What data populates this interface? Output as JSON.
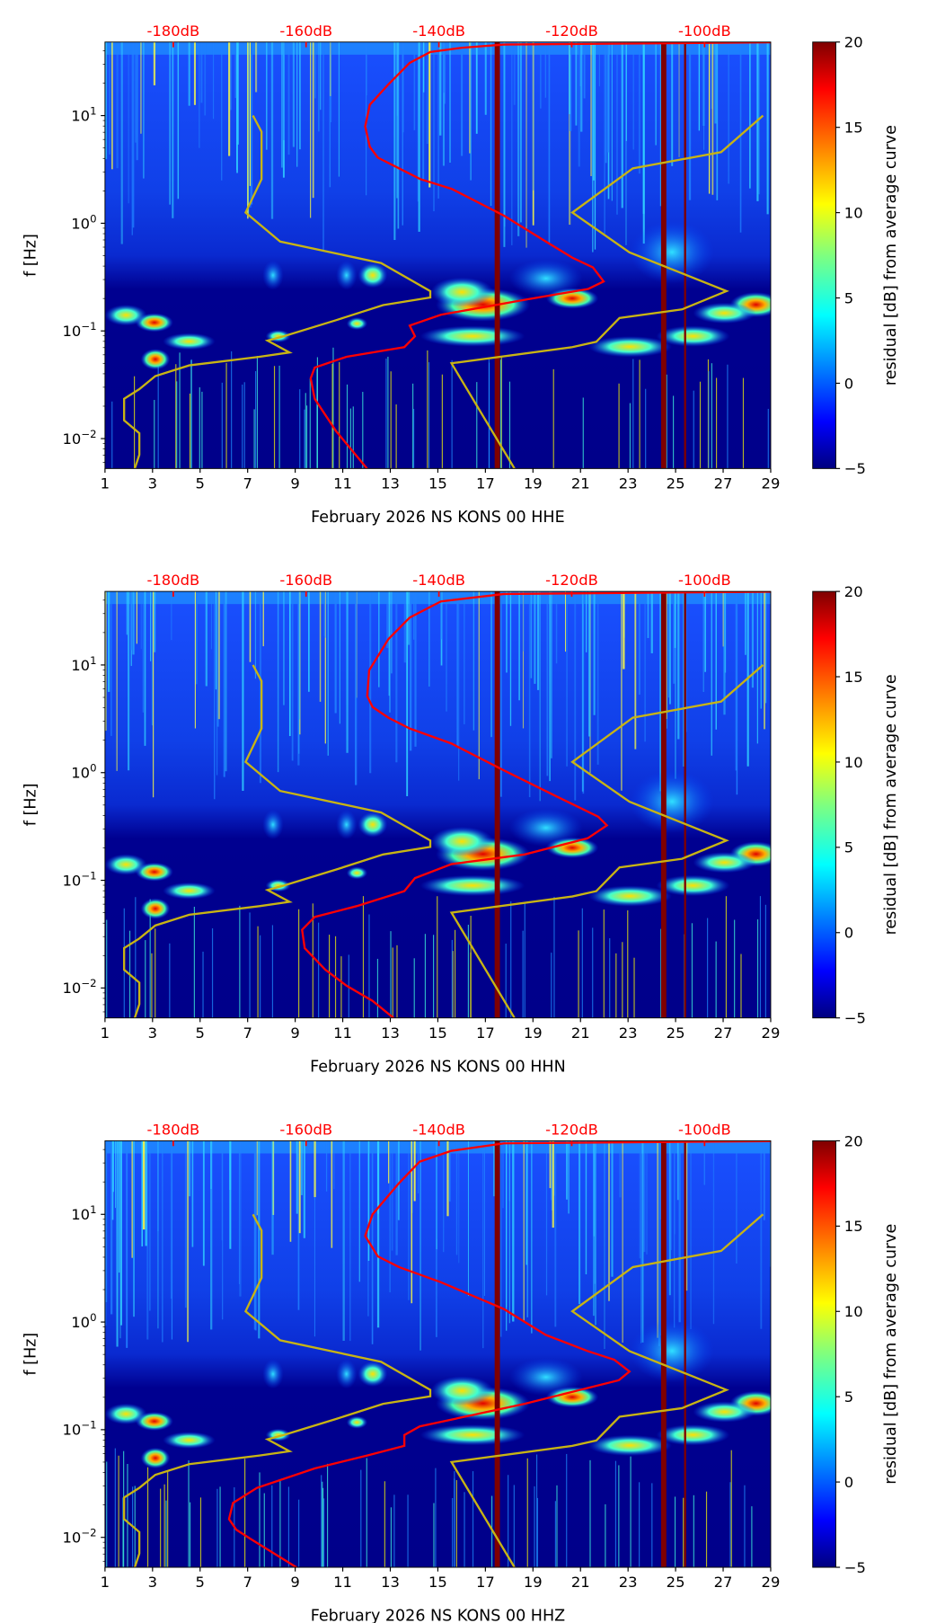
{
  "chart_data": {
    "type": "heatmap",
    "shared": {
      "x_ticks": [
        "1",
        "3",
        "5",
        "7",
        "9",
        "11",
        "13",
        "15",
        "17",
        "19",
        "21",
        "23",
        "25",
        "27",
        "29"
      ],
      "x_range_days": [
        1,
        29
      ],
      "ylabel": "f [Hz]",
      "y_range_hz": [
        0.005,
        48
      ],
      "y_ticks": [
        {
          "exp": "1",
          "value": 10
        },
        {
          "exp": "0",
          "value": 1
        },
        {
          "exp": "−1",
          "value": 0.1
        },
        {
          "exp": "−2",
          "value": 0.01
        }
      ],
      "top_axis_labels": [
        "-180dB",
        "-160dB",
        "-140dB",
        "-120dB",
        "-100dB"
      ],
      "top_axis_db": [
        -180,
        -160,
        -140,
        -120,
        -100
      ],
      "top_axis_db_range": [
        -200.5,
        -88.4
      ],
      "colorbar": {
        "label": "residual [dB] from average curve",
        "range": [
          -5,
          20
        ],
        "ticks": [
          "20",
          "15",
          "10",
          "5",
          "0",
          "−5"
        ],
        "colormap": "jet"
      },
      "nlnm_curve_db_log10hz": [
        [
          -168.0,
          1.0
        ],
        [
          -166.7,
          0.85
        ],
        [
          -166.7,
          0.41
        ],
        [
          -169.1,
          0.1
        ],
        [
          -163.9,
          -0.17
        ],
        [
          -148.7,
          -0.37
        ],
        [
          -141.3,
          -0.63
        ],
        [
          -141.3,
          -0.69
        ],
        [
          -148.4,
          -0.76
        ],
        [
          -155.5,
          -0.9
        ],
        [
          -163.4,
          -1.05
        ],
        [
          -165.8,
          -1.09
        ],
        [
          -162.5,
          -1.2
        ],
        [
          -167.0,
          -1.24
        ],
        [
          -177.6,
          -1.32
        ],
        [
          -182.7,
          -1.42
        ],
        [
          -185.1,
          -1.54
        ],
        [
          -187.4,
          -1.63
        ],
        [
          -187.4,
          -1.83
        ],
        [
          -185.1,
          -1.95
        ],
        [
          -185.1,
          -2.15
        ],
        [
          -185.8,
          -2.28
        ]
      ],
      "nhnm_curve_db_log10hz": [
        [
          -91.2,
          1.0
        ],
        [
          -97.5,
          0.66
        ],
        [
          -110.8,
          0.51
        ],
        [
          -119.9,
          0.1
        ],
        [
          -111.3,
          -0.27
        ],
        [
          -96.7,
          -0.63
        ],
        [
          -103.4,
          -0.8
        ],
        [
          -112.8,
          -0.88
        ],
        [
          -116.3,
          -1.1
        ],
        [
          -119.9,
          -1.15
        ],
        [
          -138.1,
          -1.3
        ],
        [
          -128.6,
          -2.28
        ]
      ],
      "curve_colors": {
        "psd": "#ff0000",
        "noise_models": "#c8b414",
        "top_labels": "#ff0000"
      },
      "gap_days": [
        17.5,
        24.5,
        25.4
      ]
    },
    "panels": [
      {
        "xlabel": "February 2026 NS KONS 00 HHE",
        "psd_curve_db_log10hz": [
          [
            -150.8,
            -2.28
          ],
          [
            -155.5,
            -1.93
          ],
          [
            -158.7,
            -1.63
          ],
          [
            -159.3,
            -1.44
          ],
          [
            -158.7,
            -1.34
          ],
          [
            -153.9,
            -1.24
          ],
          [
            -145.2,
            -1.15
          ],
          [
            -143.6,
            -1.05
          ],
          [
            -144.4,
            -0.95
          ],
          [
            -139.7,
            -0.85
          ],
          [
            -127.0,
            -0.71
          ],
          [
            -117.5,
            -0.61
          ],
          [
            -115.2,
            -0.54
          ],
          [
            -116.8,
            -0.41
          ],
          [
            -119.9,
            -0.32
          ],
          [
            -123.9,
            -0.17
          ],
          [
            -130.2,
            0.07
          ],
          [
            -138.1,
            0.32
          ],
          [
            -142.8,
            0.41
          ],
          [
            -146.0,
            0.51
          ],
          [
            -149.2,
            0.61
          ],
          [
            -150.4,
            0.71
          ],
          [
            -151.1,
            0.9
          ],
          [
            -150.4,
            1.1
          ],
          [
            -147.6,
            1.29
          ],
          [
            -144.4,
            1.49
          ],
          [
            -141.3,
            1.59
          ],
          [
            -136.5,
            1.63
          ],
          [
            -130.2,
            1.66
          ],
          [
            -90.0,
            1.68
          ]
        ]
      },
      {
        "xlabel": "February 2026 NS KONS 00 HHN",
        "psd_curve_db_log10hz": [
          [
            -146.8,
            -2.28
          ],
          [
            -150.0,
            -2.12
          ],
          [
            -153.9,
            -1.98
          ],
          [
            -157.1,
            -1.83
          ],
          [
            -160.2,
            -1.63
          ],
          [
            -160.6,
            -1.46
          ],
          [
            -158.7,
            -1.34
          ],
          [
            -152.4,
            -1.24
          ],
          [
            -145.2,
            -1.1
          ],
          [
            -143.6,
            -0.98
          ],
          [
            -138.1,
            -0.85
          ],
          [
            -127.1,
            -0.76
          ],
          [
            -117.6,
            -0.61
          ],
          [
            -114.7,
            -0.49
          ],
          [
            -116.0,
            -0.41
          ],
          [
            -122.3,
            -0.22
          ],
          [
            -130.2,
            0.02
          ],
          [
            -138.1,
            0.27
          ],
          [
            -144.4,
            0.41
          ],
          [
            -147.6,
            0.51
          ],
          [
            -150.0,
            0.61
          ],
          [
            -150.8,
            0.71
          ],
          [
            -150.5,
            0.95
          ],
          [
            -147.6,
            1.24
          ],
          [
            -144.4,
            1.44
          ],
          [
            -139.7,
            1.59
          ],
          [
            -130.2,
            1.66
          ],
          [
            -90.1,
            1.68
          ]
        ]
      },
      {
        "xlabel": "February 2026 NS KONS 00 HHZ",
        "psd_curve_db_log10hz": [
          [
            -161.4,
            -2.28
          ],
          [
            -168.2,
            -2.02
          ],
          [
            -170.5,
            -1.93
          ],
          [
            -171.6,
            -1.83
          ],
          [
            -171.0,
            -1.68
          ],
          [
            -167.4,
            -1.54
          ],
          [
            -158.7,
            -1.36
          ],
          [
            -150.8,
            -1.24
          ],
          [
            -145.2,
            -1.15
          ],
          [
            -145.2,
            -1.05
          ],
          [
            -142.9,
            -0.97
          ],
          [
            -127.1,
            -0.76
          ],
          [
            -112.9,
            -0.54
          ],
          [
            -111.3,
            -0.46
          ],
          [
            -113.6,
            -0.35
          ],
          [
            -117.6,
            -0.27
          ],
          [
            -123.9,
            -0.12
          ],
          [
            -130.2,
            0.12
          ],
          [
            -139.7,
            0.37
          ],
          [
            -146.0,
            0.51
          ],
          [
            -149.2,
            0.61
          ],
          [
            -151.1,
            0.8
          ],
          [
            -150.0,
            1.0
          ],
          [
            -146.0,
            1.29
          ],
          [
            -142.9,
            1.49
          ],
          [
            -138.1,
            1.59
          ],
          [
            -130.2,
            1.66
          ],
          [
            -90.1,
            1.68
          ]
        ]
      }
    ]
  }
}
